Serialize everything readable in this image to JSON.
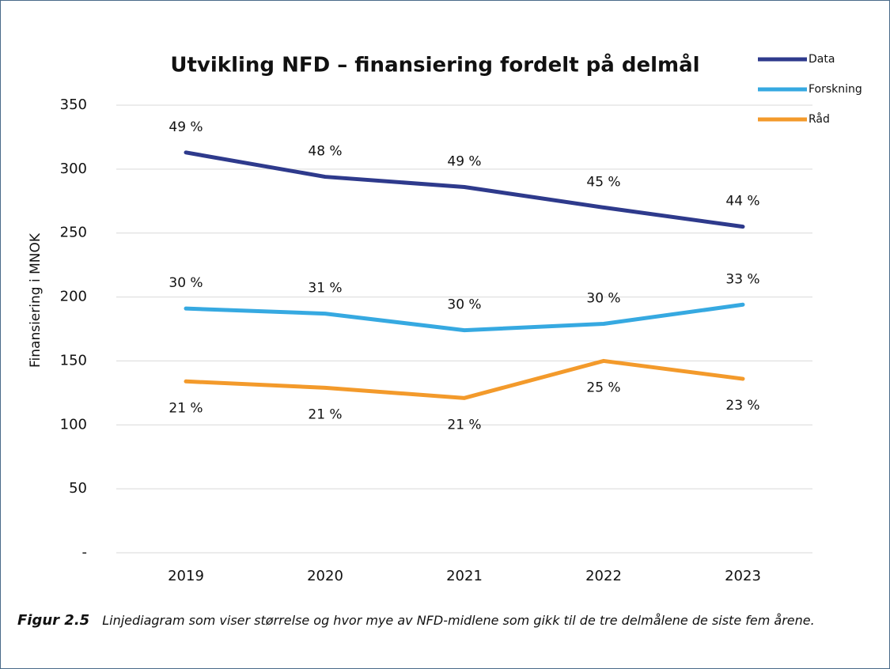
{
  "chart_data": {
    "type": "line",
    "title": "Utvikling NFD – finansiering fordelt på delmål",
    "ylabel": "Finansiering i MNOK",
    "categories": [
      "2019",
      "2020",
      "2021",
      "2022",
      "2023"
    ],
    "series": [
      {
        "name": "Data",
        "color": "#2e3a8c",
        "values": [
          313,
          294,
          286,
          270,
          255
        ],
        "value_labels": [
          "49 %",
          "48 %",
          "49 %",
          "45 %",
          "44 %"
        ]
      },
      {
        "name": "Forskning",
        "color": "#36a9e1",
        "values": [
          191,
          187,
          174,
          179,
          194
        ],
        "value_labels": [
          "30 %",
          "31 %",
          "30 %",
          "30 %",
          "33 %"
        ]
      },
      {
        "name": "Råd",
        "color": "#f39a2b",
        "values": [
          134,
          129,
          121,
          150,
          136
        ],
        "value_labels": [
          "21 %",
          "21 %",
          "21 %",
          "25 %",
          "23 %"
        ]
      }
    ],
    "ylim": [
      0,
      350
    ],
    "yticks": [
      {
        "value": 0,
        "label": "-"
      },
      50,
      100,
      150,
      200,
      250,
      300,
      350
    ],
    "grid": true,
    "legend": "top-right",
    "caption": {
      "label": "Figur 2.5",
      "text": "Linjediagram som viser størrelse og hvor mye av NFD-midlene som gikk til de tre delmålene de siste fem årene."
    }
  }
}
